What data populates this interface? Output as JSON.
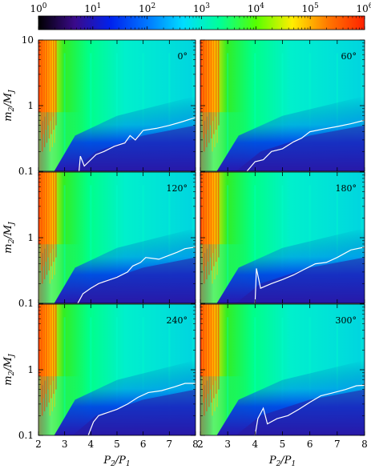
{
  "chart_data": {
    "type": "heatmap",
    "colorbar": {
      "ticks": [
        "10^0",
        "10^1",
        "10^2",
        "10^3",
        "10^4",
        "10^5",
        "10^6"
      ],
      "range": [
        1,
        1000000
      ],
      "scale": "log",
      "colormap": [
        "#000000",
        "#3a0a8a",
        "#0022ee",
        "#0077ff",
        "#00ddff",
        "#00ff99",
        "#55ff00",
        "#ffee00",
        "#ff7700",
        "#ff2200"
      ]
    },
    "x": {
      "label": "P_2/P_1",
      "lim": [
        2,
        8
      ],
      "ticks": [
        "2",
        "3",
        "4",
        "5",
        "6",
        "7",
        "8"
      ]
    },
    "y": {
      "label": "m_2/M_J",
      "lim": [
        0.1,
        10
      ],
      "scale": "log",
      "ticks": [
        "0.1",
        "1",
        "10"
      ]
    },
    "grid": false,
    "panels": [
      {
        "label": "0°",
        "contour": [
          [
            3.55,
            0.1
          ],
          [
            3.6,
            0.17
          ],
          [
            3.75,
            0.12
          ],
          [
            4.2,
            0.18
          ],
          [
            4.5,
            0.2
          ],
          [
            4.9,
            0.24
          ],
          [
            5.3,
            0.27
          ],
          [
            5.5,
            0.35
          ],
          [
            5.7,
            0.3
          ],
          [
            6.0,
            0.42
          ],
          [
            6.5,
            0.45
          ],
          [
            7.0,
            0.5
          ],
          [
            7.5,
            0.57
          ],
          [
            8.0,
            0.66
          ]
        ]
      },
      {
        "label": "60°",
        "contour": [
          [
            3.7,
            0.1
          ],
          [
            4.0,
            0.14
          ],
          [
            4.3,
            0.15
          ],
          [
            4.6,
            0.2
          ],
          [
            5.0,
            0.22
          ],
          [
            5.4,
            0.28
          ],
          [
            5.7,
            0.32
          ],
          [
            6.0,
            0.4
          ],
          [
            6.5,
            0.44
          ],
          [
            7.0,
            0.48
          ],
          [
            7.5,
            0.53
          ],
          [
            8.0,
            0.6
          ]
        ]
      },
      {
        "label": "120°",
        "contour": [
          [
            3.5,
            0.1
          ],
          [
            3.7,
            0.14
          ],
          [
            4.0,
            0.17
          ],
          [
            4.3,
            0.2
          ],
          [
            4.6,
            0.22
          ],
          [
            5.0,
            0.25
          ],
          [
            5.4,
            0.3
          ],
          [
            5.6,
            0.37
          ],
          [
            5.9,
            0.42
          ],
          [
            6.1,
            0.5
          ],
          [
            6.6,
            0.47
          ],
          [
            7.0,
            0.54
          ],
          [
            7.3,
            0.6
          ],
          [
            7.6,
            0.68
          ],
          [
            8.0,
            0.72
          ]
        ]
      },
      {
        "label": "180°",
        "contour": [
          [
            4.0,
            0.1
          ],
          [
            4.05,
            0.34
          ],
          [
            4.2,
            0.17
          ],
          [
            4.6,
            0.2
          ],
          [
            5.0,
            0.23
          ],
          [
            5.4,
            0.27
          ],
          [
            5.8,
            0.33
          ],
          [
            6.2,
            0.4
          ],
          [
            6.6,
            0.42
          ],
          [
            7.0,
            0.5
          ],
          [
            7.5,
            0.65
          ],
          [
            8.0,
            0.72
          ]
        ]
      },
      {
        "label": "240°",
        "contour": [
          [
            3.9,
            0.1
          ],
          [
            4.1,
            0.16
          ],
          [
            4.3,
            0.2
          ],
          [
            4.6,
            0.22
          ],
          [
            5.0,
            0.25
          ],
          [
            5.4,
            0.3
          ],
          [
            5.8,
            0.38
          ],
          [
            6.2,
            0.45
          ],
          [
            6.7,
            0.48
          ],
          [
            7.2,
            0.55
          ],
          [
            7.6,
            0.62
          ],
          [
            8.0,
            0.62
          ]
        ]
      },
      {
        "label": "300°",
        "contour": [
          [
            4.0,
            0.1
          ],
          [
            4.1,
            0.18
          ],
          [
            4.3,
            0.26
          ],
          [
            4.45,
            0.15
          ],
          [
            4.8,
            0.18
          ],
          [
            5.2,
            0.2
          ],
          [
            5.6,
            0.25
          ],
          [
            6.0,
            0.32
          ],
          [
            6.4,
            0.4
          ],
          [
            6.8,
            0.44
          ],
          [
            7.3,
            0.5
          ],
          [
            7.7,
            0.57
          ],
          [
            8.0,
            0.58
          ]
        ]
      }
    ]
  }
}
